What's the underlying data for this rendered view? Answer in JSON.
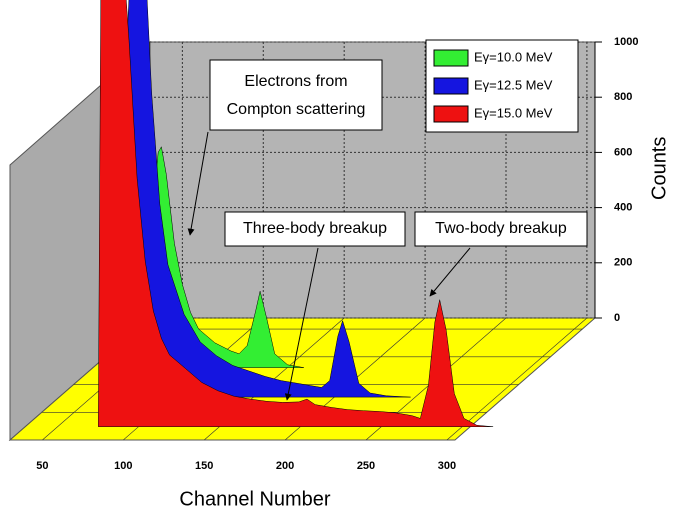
{
  "chart_data": {
    "type": "waterfall",
    "xlabel": "Channel Number",
    "ylabel": "Counts",
    "xlim": [
      30,
      305
    ],
    "xticks": [
      50,
      100,
      150,
      200,
      250,
      300
    ],
    "ylim": [
      0,
      1000
    ],
    "yticks": [
      0,
      200,
      400,
      600,
      800,
      1000
    ],
    "grid": true,
    "legend": "upper right",
    "annotations": [
      "Electrons from",
      "Compton scattering",
      "Three-body breakup",
      "Two-body breakup"
    ],
    "series": [
      {
        "name": "Eγ=10.0 MeV",
        "color": "#33ee33",
        "x": [
          66,
          68,
          72,
          75,
          77,
          80,
          85,
          90,
          95,
          100,
          110,
          120,
          125,
          130,
          135,
          138,
          142,
          147,
          155,
          165
        ],
        "values": [
          0,
          300,
          600,
          780,
          800,
          700,
          450,
          300,
          200,
          140,
          90,
          60,
          50,
          80,
          200,
          277,
          180,
          50,
          10,
          0
        ]
      },
      {
        "name": "Eγ=12.5 MeV",
        "color": "#1515e0",
        "x": [
          72,
          74,
          78,
          85,
          90,
          95,
          100,
          110,
          120,
          130,
          140,
          150,
          160,
          170,
          180,
          190,
          195,
          200,
          205,
          208,
          212,
          218,
          225,
          235,
          250
        ],
        "values": [
          0,
          1200,
          1700,
          1700,
          1100,
          700,
          480,
          300,
          200,
          150,
          115,
          95,
          75,
          60,
          50,
          40,
          35,
          60,
          220,
          277,
          200,
          50,
          15,
          5,
          0
        ]
      },
      {
        "name": "Eγ=15.0 MeV",
        "color": "#ee1111",
        "x": [
          76,
          78,
          88,
          95,
          100,
          105,
          110,
          115,
          120,
          130,
          140,
          150,
          160,
          170,
          180,
          190,
          200,
          205,
          210,
          220,
          230,
          240,
          250,
          260,
          270,
          275,
          280,
          284,
          287,
          291,
          296,
          302,
          310,
          320
        ],
        "values": [
          0,
          2000,
          2000,
          1400,
          900,
          600,
          420,
          320,
          260,
          210,
          160,
          130,
          110,
          100,
          92,
          88,
          90,
          100,
          80,
          70,
          62,
          58,
          55,
          50,
          40,
          30,
          150,
          380,
          460,
          350,
          120,
          30,
          5,
          0
        ]
      }
    ]
  }
}
